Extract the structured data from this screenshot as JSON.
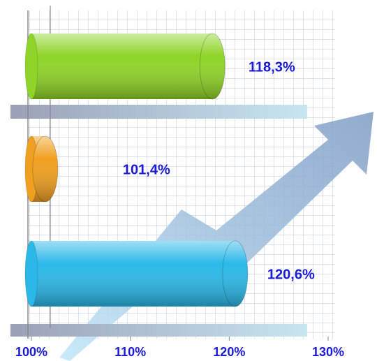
{
  "chart_data": {
    "type": "bar",
    "orientation": "horizontal",
    "categories": [
      null,
      null,
      null
    ],
    "values": [
      118.3,
      101.4,
      120.6
    ],
    "value_labels": [
      "118,3%",
      "101,4%",
      "120,6%"
    ],
    "colors": [
      "#8fd428",
      "#f0a020",
      "#2bb8e8"
    ],
    "xlim": [
      100,
      130
    ],
    "xticks": [
      {
        "value": 100,
        "label": "100%"
      },
      {
        "value": 110,
        "label": "110%"
      },
      {
        "value": 120,
        "label": "120%"
      },
      {
        "value": 130,
        "label": "130%"
      }
    ]
  }
}
